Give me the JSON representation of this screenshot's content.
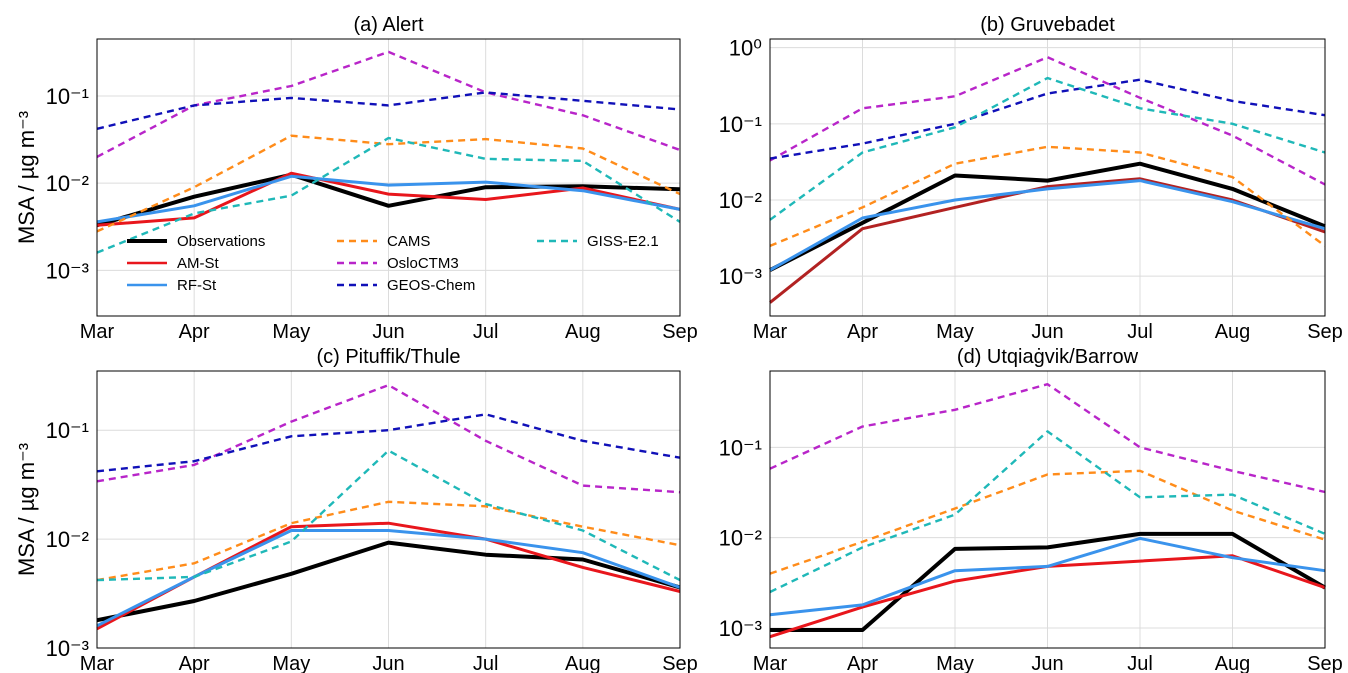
{
  "chart_data": [
    {
      "type": "line",
      "title": "(a) Alert",
      "ylabel": "MSA / µg m⁻³",
      "yscale": "log",
      "ylim": [
        0.0003,
        0.45
      ],
      "x": [
        "Mar",
        "Apr",
        "May",
        "Jun",
        "Jul",
        "Aug",
        "Sep"
      ],
      "yticks": [
        {
          "value": 0.001,
          "label": "10⁻³"
        },
        {
          "value": 0.01,
          "label": "10⁻²"
        },
        {
          "value": 0.1,
          "label": "10⁻¹"
        }
      ],
      "grid": true,
      "legend": true,
      "series": [
        {
          "name": "Observations",
          "color": "#000000",
          "style": "solid",
          "values": [
            0.0033,
            0.007,
            0.0125,
            0.0055,
            0.009,
            0.0092,
            0.0085
          ]
        },
        {
          "name": "AM-St",
          "color": "#e8161c",
          "style": "solid",
          "values": [
            0.0033,
            0.004,
            0.013,
            0.0075,
            0.0065,
            0.0088,
            0.005
          ]
        },
        {
          "name": "RF-St",
          "color": "#3a93ec",
          "style": "solid",
          "values": [
            0.0036,
            0.0055,
            0.012,
            0.0095,
            0.0103,
            0.0082,
            0.005
          ]
        },
        {
          "name": "CAMS",
          "color": "#ff8c1a",
          "style": "dashed",
          "values": [
            0.0028,
            0.009,
            0.035,
            0.028,
            0.032,
            0.025,
            0.0075
          ]
        },
        {
          "name": "OsloCTM3",
          "color": "#b825c9",
          "style": "dashed",
          "values": [
            0.02,
            0.078,
            0.13,
            0.32,
            0.11,
            0.06,
            0.024
          ]
        },
        {
          "name": "GEOS-Chem",
          "color": "#1010b8",
          "style": "dashed",
          "values": [
            0.042,
            0.078,
            0.095,
            0.078,
            0.11,
            0.088,
            0.07
          ]
        },
        {
          "name": "GISS-E2.1",
          "color": "#1fb8b8",
          "style": "dashed",
          "values": [
            0.0016,
            0.0045,
            0.0072,
            0.033,
            0.019,
            0.018,
            0.0036
          ]
        }
      ]
    },
    {
      "type": "line",
      "title": "(b) Gruvebadet",
      "yscale": "log",
      "ylim": [
        0.0003,
        1.3
      ],
      "x": [
        "Mar",
        "Apr",
        "May",
        "Jun",
        "Jul",
        "Aug",
        "Sep"
      ],
      "yticks": [
        {
          "value": 0.001,
          "label": "10⁻³"
        },
        {
          "value": 0.01,
          "label": "10⁻²"
        },
        {
          "value": 0.1,
          "label": "10⁻¹"
        },
        {
          "value": 1,
          "label": "10⁰"
        }
      ],
      "grid": true,
      "series": [
        {
          "name": "Observations",
          "color": "#000000",
          "style": "solid",
          "values": [
            0.0012,
            0.005,
            0.021,
            0.018,
            0.03,
            0.014,
            0.0045
          ]
        },
        {
          "name": "AM-St",
          "color": "#b22222",
          "style": "solid",
          "values": [
            0.00045,
            0.0042,
            0.008,
            0.015,
            0.019,
            0.01,
            0.0038
          ]
        },
        {
          "name": "RF-St",
          "color": "#3a93ec",
          "style": "solid",
          "values": [
            0.0012,
            0.0058,
            0.01,
            0.014,
            0.018,
            0.0095,
            0.0042
          ]
        },
        {
          "name": "CAMS",
          "color": "#ff8c1a",
          "style": "dashed",
          "values": [
            0.0025,
            0.008,
            0.03,
            0.05,
            0.042,
            0.02,
            0.0025
          ]
        },
        {
          "name": "OsloCTM3",
          "color": "#b825c9",
          "style": "dashed",
          "values": [
            0.033,
            0.16,
            0.23,
            0.75,
            0.22,
            0.07,
            0.016
          ]
        },
        {
          "name": "GEOS-Chem",
          "color": "#1010b8",
          "style": "dashed",
          "values": [
            0.035,
            0.055,
            0.1,
            0.25,
            0.38,
            0.2,
            0.13
          ]
        },
        {
          "name": "GISS-E2.1",
          "color": "#1fb8b8",
          "style": "dashed",
          "values": [
            0.0055,
            0.042,
            0.09,
            0.4,
            0.16,
            0.1,
            0.042
          ]
        }
      ]
    },
    {
      "type": "line",
      "title": "(c) Pituffik/Thule",
      "ylabel": "MSA / µg m⁻³",
      "yscale": "log",
      "ylim": [
        0.001,
        0.35
      ],
      "x": [
        "Mar",
        "Apr",
        "May",
        "Jun",
        "Jul",
        "Aug",
        "Sep"
      ],
      "yticks": [
        {
          "value": 0.001,
          "label": "10⁻³"
        },
        {
          "value": 0.01,
          "label": "10⁻²"
        },
        {
          "value": 0.1,
          "label": "10⁻¹"
        }
      ],
      "grid": true,
      "series": [
        {
          "name": "Observations",
          "color": "#000000",
          "style": "solid",
          "values": [
            0.0018,
            0.0027,
            0.0048,
            0.0093,
            0.0072,
            0.0065,
            0.0036
          ]
        },
        {
          "name": "AM-St",
          "color": "#e8161c",
          "style": "solid",
          "values": [
            0.0015,
            0.0045,
            0.013,
            0.014,
            0.01,
            0.0055,
            0.0033
          ]
        },
        {
          "name": "RF-St",
          "color": "#3a93ec",
          "style": "solid",
          "values": [
            0.0016,
            0.0045,
            0.012,
            0.012,
            0.01,
            0.0075,
            0.0036
          ]
        },
        {
          "name": "CAMS",
          "color": "#ff8c1a",
          "style": "dashed",
          "values": [
            0.0042,
            0.006,
            0.014,
            0.022,
            0.02,
            0.013,
            0.0088
          ]
        },
        {
          "name": "OsloCTM3",
          "color": "#b825c9",
          "style": "dashed",
          "values": [
            0.034,
            0.048,
            0.12,
            0.26,
            0.08,
            0.031,
            0.027
          ]
        },
        {
          "name": "GEOS-Chem",
          "color": "#1010b8",
          "style": "dashed",
          "values": [
            0.042,
            0.052,
            0.088,
            0.1,
            0.14,
            0.08,
            0.056
          ]
        },
        {
          "name": "GISS-E2.1",
          "color": "#1fb8b8",
          "style": "dashed",
          "values": [
            0.0042,
            0.0045,
            0.0095,
            0.065,
            0.021,
            0.012,
            0.0042
          ]
        }
      ]
    },
    {
      "type": "line",
      "title": "(d) Utqiaġvik/Barrow",
      "yscale": "log",
      "ylim": [
        0.0006,
        0.7
      ],
      "x": [
        "Mar",
        "Apr",
        "May",
        "Jun",
        "Jul",
        "Aug",
        "Sep"
      ],
      "yticks": [
        {
          "value": 0.001,
          "label": "10⁻³"
        },
        {
          "value": 0.01,
          "label": "10⁻²"
        },
        {
          "value": 0.1,
          "label": "10⁻¹"
        }
      ],
      "grid": true,
      "series": [
        {
          "name": "Observations",
          "color": "#000000",
          "style": "solid",
          "values": [
            0.00095,
            0.00095,
            0.0075,
            0.0078,
            0.011,
            0.011,
            0.0028
          ]
        },
        {
          "name": "AM-St",
          "color": "#e8161c",
          "style": "solid",
          "values": [
            0.0008,
            0.0017,
            0.0033,
            0.0048,
            0.0055,
            0.0063,
            0.0028
          ]
        },
        {
          "name": "RF-St",
          "color": "#3a93ec",
          "style": "solid",
          "values": [
            0.0014,
            0.0018,
            0.0043,
            0.0048,
            0.0098,
            0.006,
            0.0043
          ]
        },
        {
          "name": "CAMS",
          "color": "#ff8c1a",
          "style": "dashed",
          "values": [
            0.004,
            0.009,
            0.021,
            0.05,
            0.055,
            0.02,
            0.0095
          ]
        },
        {
          "name": "OsloCTM3",
          "color": "#b825c9",
          "style": "dashed",
          "values": [
            0.058,
            0.17,
            0.26,
            0.5,
            0.1,
            0.055,
            0.032
          ]
        },
        {
          "name": "GISS-E2.1",
          "color": "#1fb8b8",
          "style": "dashed",
          "values": [
            0.0025,
            0.0078,
            0.018,
            0.15,
            0.028,
            0.03,
            0.011
          ]
        }
      ]
    }
  ]
}
